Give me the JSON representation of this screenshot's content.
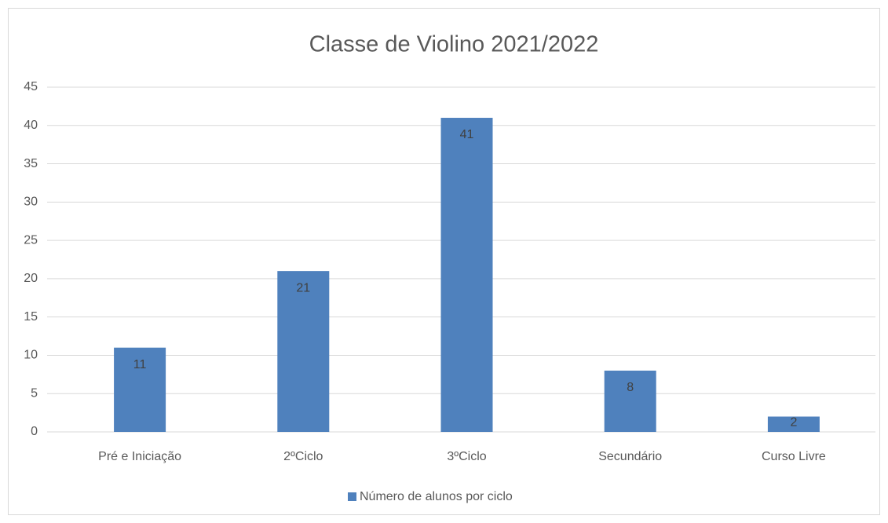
{
  "chart_data": {
    "type": "bar",
    "title": "Classe de Violino 2021/2022",
    "categories": [
      "Pré e Iniciação",
      "2ºCiclo",
      "3ºCiclo",
      "Secundário",
      "Curso Livre"
    ],
    "series": [
      {
        "name": "Número de alunos por ciclo",
        "color": "#4f81bd",
        "values": [
          11,
          21,
          41,
          8,
          2
        ]
      }
    ],
    "ylim": [
      0,
      45
    ],
    "yticks": [
      0,
      5,
      10,
      15,
      20,
      25,
      30,
      35,
      40,
      45
    ],
    "grid": true,
    "legend": "bottom"
  }
}
